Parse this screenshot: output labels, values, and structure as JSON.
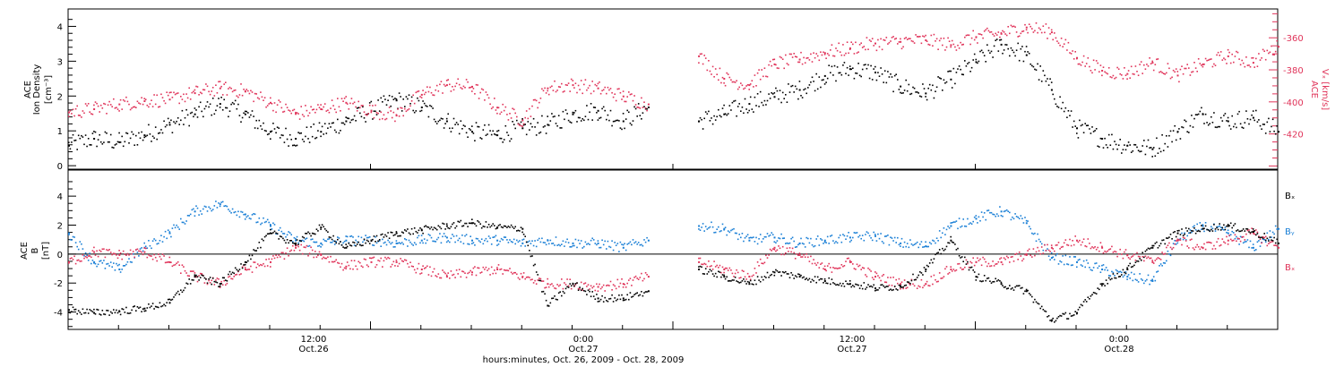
{
  "chart_data": [
    {
      "type": "scatter",
      "panel": "top",
      "ylabel_lines": [
        "ACE",
        "Ion Density",
        "[cm⁻³]"
      ],
      "ylim": [
        -0.1,
        4.5
      ],
      "yticks": [
        "0",
        "1",
        "2",
        "3",
        "4"
      ],
      "right_axis": {
        "ylabel_lines": [
          "ACE",
          "Vₓ [km/s]"
        ],
        "ylim": [
          -442,
          -342
        ],
        "yticks": [
          "-360",
          "-380",
          "-400",
          "-420"
        ],
        "color": "#e0345a"
      },
      "series": [
        {
          "color": "#000000",
          "x": [
            0.0,
            1.0,
            2.0,
            3.0,
            4.0,
            5.0,
            6.0,
            7.0,
            8.0,
            9.0,
            10.0,
            11.0,
            12.0,
            13.0,
            14.0,
            15.0,
            16.0,
            17.0,
            18.0,
            19.0,
            20.0,
            21.0,
            22.0,
            23.0,
            24.0,
            25.0,
            26.0,
            27.0,
            28.0,
            29.0,
            30.0,
            31.0,
            32.0,
            33.0,
            34.0,
            35.0,
            36.0,
            37.0,
            38.0,
            39.0,
            40.0,
            41.0,
            42.0,
            43.0,
            44.0,
            45.0,
            46.0,
            47.0,
            48.0
          ],
          "y": [
            0.6,
            0.8,
            0.7,
            0.9,
            1.2,
            1.5,
            1.8,
            1.5,
            1.0,
            0.8,
            1.0,
            1.3,
            1.6,
            1.9,
            1.7,
            1.3,
            1.0,
            0.9,
            1.1,
            1.2,
            1.5,
            1.6,
            1.3,
            1.7,
            null,
            1.3,
            1.5,
            1.8,
            2.0,
            2.2,
            2.6,
            2.8,
            2.7,
            2.3,
            2.1,
            2.5,
            3.0,
            3.5,
            3.2,
            2.2,
            1.1,
            0.8,
            0.6,
            0.5,
            1.0,
            1.5,
            1.3,
            1.4,
            1.0
          ]
        },
        {
          "color": "#e0345a",
          "x": [
            0.0,
            1.0,
            2.0,
            3.0,
            4.0,
            5.0,
            6.0,
            7.0,
            8.0,
            9.0,
            10.0,
            11.0,
            12.0,
            13.0,
            14.0,
            15.0,
            16.0,
            17.0,
            18.0,
            19.0,
            20.0,
            21.0,
            22.0,
            23.0,
            24.0,
            25.0,
            26.0,
            27.0,
            28.0,
            29.0,
            30.0,
            31.0,
            32.0,
            33.0,
            34.0,
            35.0,
            36.0,
            37.0,
            38.0,
            39.0,
            40.0,
            41.0,
            42.0,
            43.0,
            44.0,
            45.0,
            46.0,
            47.0,
            48.0
          ],
          "y": [
            -406,
            -404,
            -401,
            -399,
            -398,
            -394,
            -391,
            -393,
            -400,
            -407,
            -404,
            -400,
            -405,
            -408,
            -395,
            -389,
            -390,
            -403,
            -411,
            -391,
            -389,
            -391,
            -396,
            -401,
            null,
            -371,
            -385,
            -389,
            -376,
            -373,
            -369,
            -366,
            -363,
            -362,
            -361,
            -364,
            -359,
            -357,
            -353,
            -356,
            -372,
            -380,
            -382,
            -375,
            -383,
            -376,
            -371,
            -375,
            -365
          ]
        }
      ]
    },
    {
      "type": "scatter",
      "panel": "bottom",
      "ylabel_lines": [
        "ACE",
        "B",
        "[nT]"
      ],
      "ylim": [
        -5.2,
        5.8
      ],
      "yticks": [
        "4",
        "2",
        "0",
        "-2",
        "-4"
      ],
      "xlabel": "hours:minutes, Oct. 26, 2009 - Oct. 28, 2009",
      "xtick_labels": [
        {
          "time": "12:00",
          "date": "Oct.26"
        },
        {
          "time": "0:00",
          "date": "Oct.27"
        },
        {
          "time": "12:00",
          "date": "Oct.27"
        },
        {
          "time": "0:00",
          "date": "Oct.28"
        }
      ],
      "series": [
        {
          "name": "Bₓ",
          "color": "#000000",
          "x": [
            0.0,
            1.0,
            2.0,
            3.0,
            4.0,
            5.0,
            6.0,
            7.0,
            8.0,
            9.0,
            10.0,
            11.0,
            12.0,
            13.0,
            14.0,
            15.0,
            16.0,
            17.0,
            18.0,
            19.0,
            20.0,
            21.0,
            22.0,
            23.0,
            24.0,
            25.0,
            26.0,
            27.0,
            28.0,
            29.0,
            30.0,
            31.0,
            32.0,
            33.0,
            34.0,
            35.0,
            36.0,
            37.0,
            38.0,
            39.0,
            40.0,
            41.0,
            42.0,
            43.0,
            44.0,
            45.0,
            46.0,
            47.0,
            48.0
          ],
          "y": [
            -3.8,
            -4.0,
            -3.9,
            -3.7,
            -3.3,
            -1.5,
            -2.0,
            -0.5,
            1.5,
            0.8,
            1.9,
            0.5,
            1.0,
            1.5,
            1.7,
            2.0,
            2.2,
            1.9,
            1.8,
            -3.5,
            -2.0,
            -3.0,
            -3.0,
            -2.5,
            null,
            -1.0,
            -1.5,
            -2.0,
            -1.2,
            -1.5,
            -1.8,
            -2.0,
            -2.3,
            -2.2,
            -1.0,
            1.0,
            -1.5,
            -2.0,
            -2.5,
            -4.5,
            -4.0,
            -2.0,
            -1.0,
            0.5,
            1.5,
            1.8,
            2.0,
            1.6,
            0.8
          ]
        },
        {
          "name": "Bᵧ",
          "color": "#1a7fd6",
          "x": [
            0.0,
            1.0,
            2.0,
            3.0,
            4.0,
            5.0,
            6.0,
            7.0,
            8.0,
            9.0,
            10.0,
            11.0,
            12.0,
            13.0,
            14.0,
            15.0,
            16.0,
            17.0,
            18.0,
            19.0,
            20.0,
            21.0,
            22.0,
            23.0,
            24.0,
            25.0,
            26.0,
            27.0,
            28.0,
            29.0,
            30.0,
            31.0,
            32.0,
            33.0,
            34.0,
            35.0,
            36.0,
            37.0,
            38.0,
            39.0,
            40.0,
            41.0,
            42.0,
            43.0,
            44.0,
            45.0,
            46.0,
            47.0,
            48.0
          ],
          "y": [
            1.5,
            -0.5,
            -1.0,
            0.5,
            1.5,
            3.0,
            3.5,
            2.8,
            2.0,
            1.0,
            0.8,
            1.0,
            1.0,
            0.8,
            1.0,
            1.2,
            1.0,
            1.0,
            0.8,
            1.0,
            0.8,
            0.8,
            0.5,
            1.0,
            null,
            2.0,
            1.8,
            1.0,
            1.2,
            0.8,
            1.0,
            1.2,
            1.3,
            0.8,
            0.6,
            2.0,
            2.5,
            3.0,
            2.2,
            -0.2,
            -0.5,
            -1.0,
            -1.5,
            -1.8,
            1.0,
            2.0,
            1.5,
            0.5,
            1.8
          ]
        },
        {
          "name": "Bₓ",
          "color": "#e0345a",
          "x": [
            0.0,
            1.0,
            2.0,
            3.0,
            4.0,
            5.0,
            6.0,
            7.0,
            8.0,
            9.0,
            10.0,
            11.0,
            12.0,
            13.0,
            14.0,
            15.0,
            16.0,
            17.0,
            18.0,
            19.0,
            20.0,
            21.0,
            22.0,
            23.0,
            24.0,
            25.0,
            26.0,
            27.0,
            28.0,
            29.0,
            30.0,
            31.0,
            32.0,
            33.0,
            34.0,
            35.0,
            36.0,
            37.0,
            38.0,
            39.0,
            40.0,
            41.0,
            42.0,
            43.0,
            44.0,
            45.0,
            46.0,
            47.0,
            48.0
          ],
          "y": [
            -0.5,
            0.2,
            0.0,
            0.2,
            -0.5,
            -1.5,
            -2.0,
            -1.0,
            -0.5,
            0.5,
            0.0,
            -0.8,
            -0.5,
            -0.5,
            -1.0,
            -1.5,
            -1.2,
            -1.0,
            -1.5,
            -2.0,
            -2.0,
            -2.2,
            -2.0,
            -1.5,
            null,
            -0.5,
            -1.0,
            -1.5,
            0.5,
            0.0,
            -1.0,
            -0.5,
            -1.5,
            -2.0,
            -2.0,
            -1.0,
            -0.5,
            -0.5,
            0.0,
            0.5,
            1.0,
            0.5,
            0.0,
            -0.5,
            1.0,
            0.5,
            1.0,
            1.5,
            0.5
          ]
        }
      ]
    }
  ]
}
